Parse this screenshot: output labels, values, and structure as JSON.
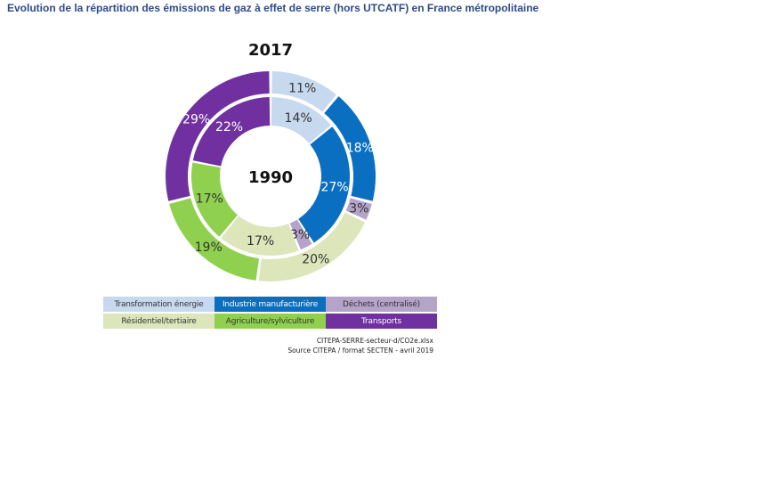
{
  "title": "Evolution de la répartition des émissions de gaz à effet de serre (hors UTCATF) en France métropolitaine",
  "chart_data": {
    "type": "donut",
    "title": "",
    "outer_label": "2017",
    "inner_label": "1990",
    "categories": [
      "Transformation énergie",
      "Industrie manufacturière",
      "Déchets (centralisé)",
      "Résidentiel/tertiaire",
      "Agriculture/sylviculture",
      "Transports"
    ],
    "colors": [
      "#c7d9ef",
      "#0a6fc1",
      "#b5a3ca",
      "#dde5bb",
      "#8fd14f",
      "#7030a0"
    ],
    "label_colors": [
      "#333333",
      "#ffffff",
      "#333333",
      "#333333",
      "#333333",
      "#ffffff"
    ],
    "series": [
      {
        "name": "1990",
        "values": [
          14,
          27,
          3,
          17,
          17,
          22
        ],
        "labels": [
          "14%",
          "27%",
          "3%",
          "17%",
          "17%",
          "22%"
        ]
      },
      {
        "name": "2017",
        "values": [
          11,
          18,
          3,
          20,
          19,
          29
        ],
        "labels": [
          "11%",
          "18%",
          "3%",
          "20%",
          "19%",
          "29%"
        ]
      }
    ]
  },
  "legend": {
    "row1": [
      "Transformation énergie",
      "Industrie manufacturière",
      "Déchets (centralisé)"
    ],
    "row2": [
      "Résidentiel/tertiaire",
      "Agriculture/sylviculture",
      "Transports"
    ],
    "row1_colors": [
      "#c7d9ef",
      "#0a6fc1",
      "#b5a3ca"
    ],
    "row2_colors": [
      "#dde5bb",
      "#8fd14f",
      "#7030a0"
    ],
    "row1_text_colors": [
      "#333333",
      "#ffffff",
      "#333333"
    ],
    "row2_text_colors": [
      "#333333",
      "#333333",
      "#ffffff"
    ]
  },
  "source": {
    "line1": "CITEPA-SERRE-secteur-d/CO2e.xlsx",
    "line2": "Source CITEPA / format SECTEN - avril 2019"
  }
}
